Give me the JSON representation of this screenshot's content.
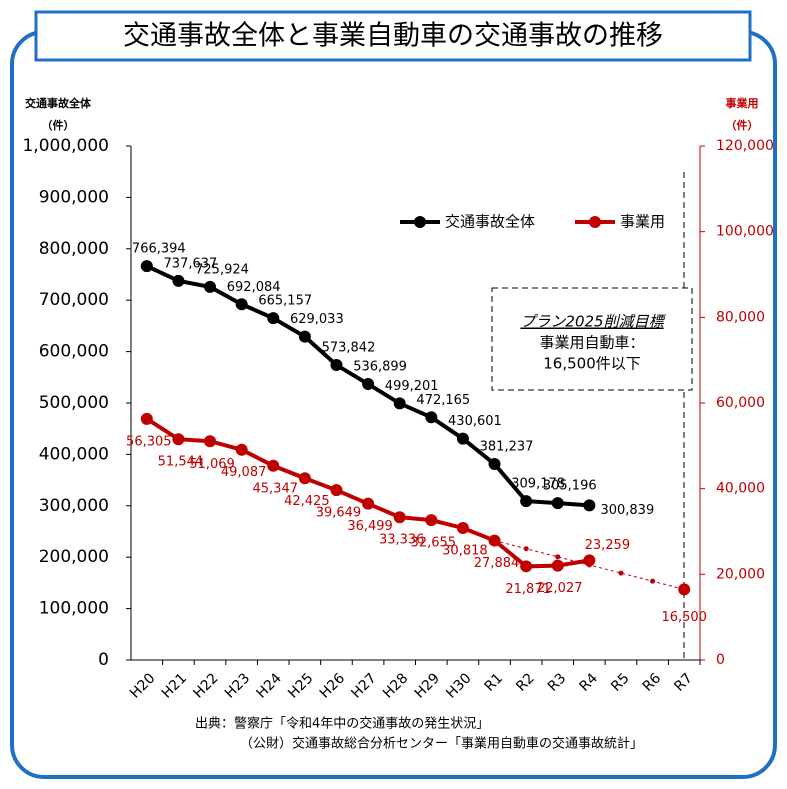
{
  "chart_data": {
    "type": "line",
    "title": "交通事故全体と事業自動車の交通事故の推移",
    "ylabel": "交通事故全体",
    "ylabel_unit": "（件）",
    "y2label": "事業用",
    "y2label_unit": "（件）",
    "categories": [
      "H20",
      "H21",
      "H22",
      "H23",
      "H24",
      "H25",
      "H26",
      "H27",
      "H28",
      "H29",
      "H30",
      "R1",
      "R2",
      "R3",
      "R4",
      "R5",
      "R6",
      "R7"
    ],
    "series": [
      {
        "name": "交通事故全体",
        "color": "#000000",
        "values": [
          766394,
          737637,
          725924,
          692084,
          665157,
          629033,
          573842,
          536899,
          499201,
          472165,
          430601,
          381237,
          309178,
          305196,
          300839,
          null,
          null,
          null
        ],
        "value_labels": [
          "766,394",
          "737,637",
          "725,924",
          "692,084",
          "665,157",
          "629,033",
          "573,842",
          "536,899",
          "499,201",
          "472,165",
          "430,601",
          "381,237",
          "309,178",
          "305,196",
          "300,839",
          null,
          null,
          null
        ]
      },
      {
        "name": "事業用",
        "color": "#c00000",
        "axis": "y2",
        "values": [
          56305,
          51544,
          51069,
          49087,
          45347,
          42425,
          39649,
          36499,
          33336,
          32655,
          30818,
          27884,
          21871,
          22027,
          23259,
          null,
          null,
          16500
        ],
        "value_labels": [
          "56,305",
          "51,544",
          "51,069",
          "49,087",
          "45,347",
          "42,425",
          "39,649",
          "36,499",
          "33,336",
          "32,655",
          "30,818",
          "27,884",
          "21,871",
          "22,027",
          "23,259",
          null,
          null,
          "16,500"
        ]
      }
    ],
    "ylim": [
      0,
      1000000
    ],
    "yticks": [
      0,
      {
        "value": 100000,
        "label": "100,000"
      },
      {
        "value": 200000,
        "label": "200,000"
      },
      {
        "value": 300000,
        "label": "300,000"
      },
      {
        "value": 400000,
        "label": "400,000"
      },
      {
        "value": 500000,
        "label": "500,000"
      },
      {
        "value": 600000,
        "label": "600,000"
      },
      {
        "value": 700000,
        "label": "700,000"
      },
      {
        "value": 800000,
        "label": "800,000"
      },
      {
        "value": 900000,
        "label": "900,000"
      },
      {
        "value": 1000000,
        "label": "1,000,000"
      }
    ],
    "y2lim": [
      0,
      120000
    ],
    "y2ticks": [
      0,
      {
        "value": 20000,
        "label": "20,000"
      },
      {
        "value": 40000,
        "label": "40,000"
      },
      {
        "value": 60000,
        "label": "60,000"
      },
      {
        "value": 80000,
        "label": "80,000"
      },
      {
        "value": 100000,
        "label": "100,000"
      },
      {
        "value": 120000,
        "label": "120,000"
      }
    ],
    "legend": "top-right",
    "annotation": [
      "プラン2025削減目標",
      "事業用自動車：",
      "16,500件以下"
    ],
    "source": [
      "出典：警察庁「令和4年中の交通事故の発生状況」",
      "（公財）交通事故総合分析センター「事業用自動車の交通事故統計」"
    ]
  }
}
